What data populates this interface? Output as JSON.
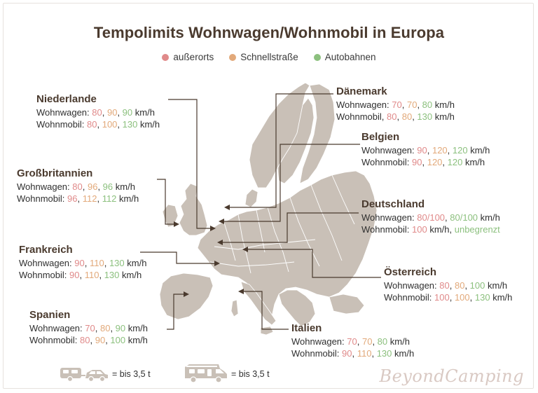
{
  "title": "Tempolimits Wohnwagen/Wohnmobil in Europa",
  "legend": [
    {
      "label": "außerorts",
      "color": "#e08a8a"
    },
    {
      "label": "Schnellstraße",
      "color": "#e2a97a"
    },
    {
      "label": "Autobahnen",
      "color": "#8cc07e"
    }
  ],
  "countries": {
    "niederlande": {
      "name": "Niederlande",
      "caravan_label": "Wohnwagen: ",
      "caravan": [
        "80",
        "90",
        "90"
      ],
      "motorhome_label": "Wohnmobil: ",
      "motorhome": [
        "80",
        "100",
        "130"
      ],
      "unit": " km/h"
    },
    "grossbritannien": {
      "name": "Großbritannien",
      "caravan_label": "Wohnwagen: ",
      "caravan": [
        "80",
        "96",
        "96"
      ],
      "motorhome_label": "Wohnmobil: ",
      "motorhome": [
        "96",
        "112",
        "112"
      ],
      "unit": " km/h"
    },
    "frankreich": {
      "name": "Frankreich",
      "caravan_label": "Wohnwagen: ",
      "caravan": [
        "90",
        "110",
        "130"
      ],
      "motorhome_label": "Wohnmobil: ",
      "motorhome": [
        "90",
        "110",
        "130"
      ],
      "unit": " km/h"
    },
    "spanien": {
      "name": "Spanien",
      "caravan_label": "Wohnwagen: ",
      "caravan": [
        "70",
        "80",
        "90"
      ],
      "motorhome_label": "Wohnmobil: ",
      "motorhome": [
        "80",
        "90",
        "100"
      ],
      "unit": " km/h"
    },
    "daenemark": {
      "name": "Dänemark",
      "caravan_label": "Wohnwagen: ",
      "caravan": [
        "70",
        "70",
        "80"
      ],
      "motorhome_label": "Wohnmobil, ",
      "motorhome": [
        "80",
        "80",
        "130"
      ],
      "unit": " km/h"
    },
    "belgien": {
      "name": "Belgien",
      "caravan_label": "Wohnwagen: ",
      "caravan": [
        "90",
        "120",
        "120"
      ],
      "motorhome_label": "Wohnmobil: ",
      "motorhome": [
        "90",
        "120",
        "120"
      ],
      "unit": " km/h"
    },
    "deutschland": {
      "name": "Deutschland",
      "caravan_label": "Wohnwagen: ",
      "caravan": [
        "80/100",
        "80/100"
      ],
      "caravan_unit": " km/h",
      "motorhome_label": "Wohnmobil: ",
      "motorhome_1": "100",
      "motorhome_unit": " km/h, ",
      "motorhome_2": "unbegrenzt"
    },
    "oesterreich": {
      "name": "Österreich",
      "caravan_label": "Wohnwagen: ",
      "caravan": [
        "80",
        "80",
        "100"
      ],
      "motorhome_label": "Wohnmobil: ",
      "motorhome": [
        "100",
        "100",
        "130"
      ],
      "unit": " km/h"
    },
    "italien": {
      "name": "Italien",
      "caravan_label": "Wohnwagen: ",
      "caravan": [
        "70",
        "70",
        "80"
      ],
      "motorhome_label": "Wohnmobil: ",
      "motorhome": [
        "90",
        "110",
        "130"
      ],
      "unit": " km/h"
    }
  },
  "footer": {
    "caravan_note": "= bis 3,5 t",
    "motorhome_note": "= bis 3,5 t",
    "caravan_icon": "car-with-caravan-icon",
    "motorhome_icon": "motorhome-icon",
    "brand": "BeyondCamping"
  },
  "colors": {
    "land": "#c9c0b7",
    "border": "#ffffff",
    "leader": "#4a3a2e",
    "title": "#4a3a2e"
  }
}
